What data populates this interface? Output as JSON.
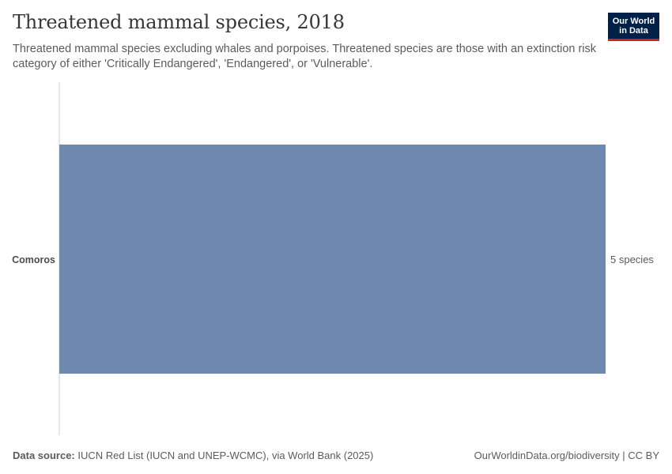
{
  "header": {
    "title": "Threatened mammal species, 2018",
    "subtitle": "Threatened mammal species excluding whales and porpoises. Threatened species are those with an extinction risk category of either 'Critically Endangered', 'Endangered', or 'Vulnerable'."
  },
  "logo": {
    "line1": "Our World",
    "line2": "in Data",
    "background": "#002147",
    "accent": "#ce261e"
  },
  "chart_data": {
    "type": "bar",
    "orientation": "horizontal",
    "categories": [
      "Comoros"
    ],
    "values": [
      5
    ],
    "value_labels": [
      "5 species"
    ],
    "unit": "species",
    "bar_color": "#6f88b0",
    "xlim": [
      0,
      5
    ],
    "grid": false
  },
  "footer": {
    "source_label": "Data source:",
    "source_text": " IUCN Red List (IUCN and UNEP-WCMC), via World Bank (2025)",
    "right_text": "OurWorldinData.org/biodiversity | CC BY"
  }
}
